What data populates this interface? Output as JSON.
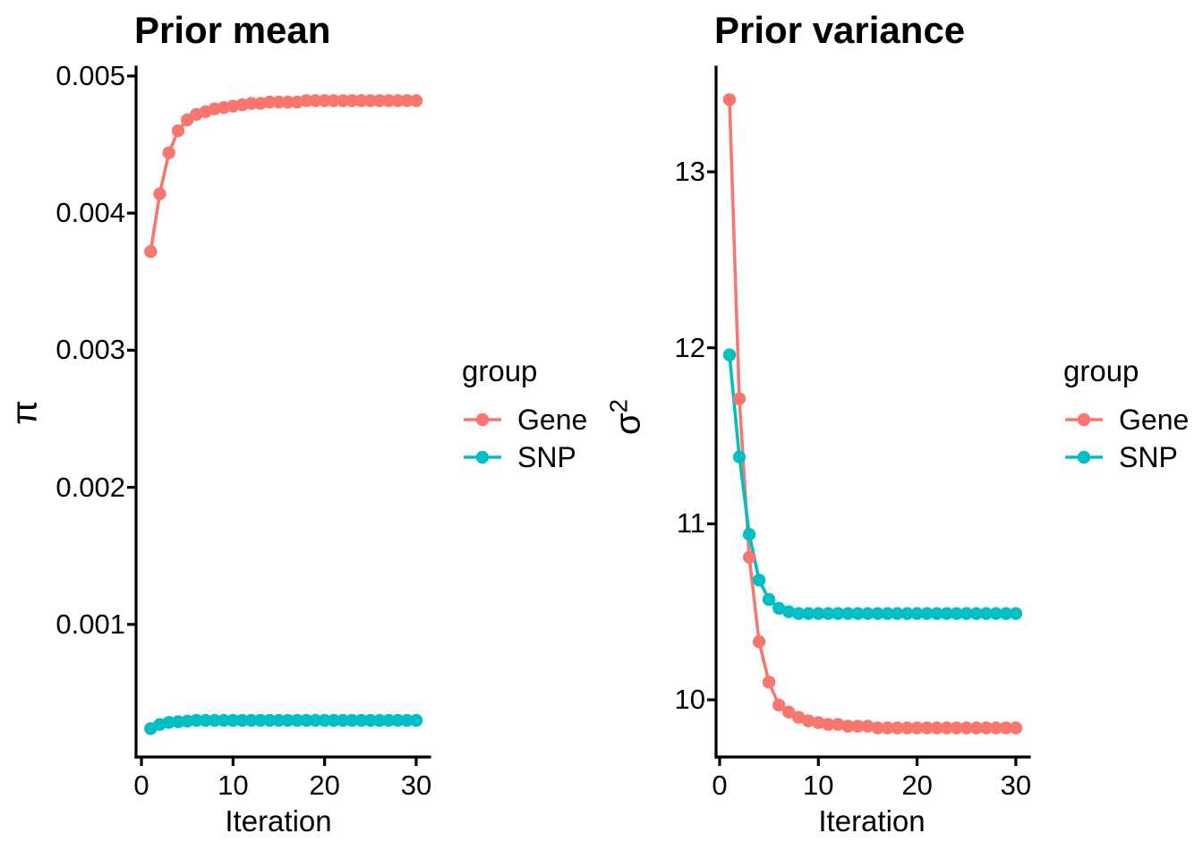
{
  "chart_data": [
    {
      "type": "line",
      "title": "Prior mean",
      "xlabel": "Iteration",
      "ylabel": "π",
      "legend_title": "group",
      "legend_position": "right",
      "grid": false,
      "x": [
        1,
        2,
        3,
        4,
        5,
        6,
        7,
        8,
        9,
        10,
        11,
        12,
        13,
        14,
        15,
        16,
        17,
        18,
        19,
        20,
        21,
        22,
        23,
        24,
        25,
        26,
        27,
        28,
        29,
        30
      ],
      "xlim": [
        -0.59,
        31.47
      ],
      "ylim": [
        3.3e-05,
        0.005065
      ],
      "xticks": {
        "values": [
          0,
          10,
          20,
          30
        ],
        "labels": [
          "0",
          "10",
          "20",
          "30"
        ]
      },
      "yticks": {
        "values": [
          0.005,
          0.004,
          0.003,
          0.002,
          0.001
        ],
        "labels": [
          "0.005",
          "0.004",
          "0.003",
          "0.002",
          "0.001"
        ]
      },
      "series": [
        {
          "name": "Gene",
          "color": "#F8766D",
          "values": [
            0.00372,
            0.00414,
            0.00444,
            0.0046,
            0.00468,
            0.00472,
            0.00474,
            0.00476,
            0.00477,
            0.00478,
            0.00479,
            0.0048,
            0.0048,
            0.00481,
            0.00481,
            0.00481,
            0.00481,
            0.00482,
            0.00482,
            0.00482,
            0.00482,
            0.00482,
            0.00482,
            0.00482,
            0.00482,
            0.00482,
            0.00482,
            0.00482,
            0.00482,
            0.00482
          ]
        },
        {
          "name": "SNP",
          "color": "#00BFC4",
          "values": [
            0.00024,
            0.00027,
            0.000285,
            0.00029,
            0.000295,
            0.0003,
            0.0003,
            0.0003,
            0.0003,
            0.0003,
            0.0003,
            0.0003,
            0.0003,
            0.0003,
            0.0003,
            0.0003,
            0.0003,
            0.0003,
            0.0003,
            0.0003,
            0.0003,
            0.0003,
            0.0003,
            0.0003,
            0.0003,
            0.0003,
            0.0003,
            0.0003,
            0.0003,
            0.0003
          ]
        }
      ]
    },
    {
      "type": "line",
      "title": "Prior variance",
      "xlabel": "Iteration",
      "ylabel": "σ²",
      "ylabel_base": "σ",
      "ylabel_sup": "2",
      "legend_title": "group",
      "legend_position": "right",
      "grid": false,
      "x": [
        1,
        2,
        3,
        4,
        5,
        6,
        7,
        8,
        9,
        10,
        11,
        12,
        13,
        14,
        15,
        16,
        17,
        18,
        19,
        20,
        21,
        22,
        23,
        24,
        25,
        26,
        27,
        28,
        29,
        30
      ],
      "xlim": [
        -0.36,
        31.37
      ],
      "ylim": [
        9.675,
        13.595
      ],
      "xticks": {
        "values": [
          0,
          10,
          20,
          30
        ],
        "labels": [
          "0",
          "10",
          "20",
          "30"
        ]
      },
      "yticks": {
        "values": [
          13,
          12,
          11,
          10
        ],
        "labels": [
          "13",
          "12",
          "11",
          "10"
        ]
      },
      "series": [
        {
          "name": "Gene",
          "color": "#F8766D",
          "values": [
            13.41,
            11.71,
            10.81,
            10.33,
            10.1,
            9.97,
            9.93,
            9.9,
            9.88,
            9.87,
            9.86,
            9.86,
            9.85,
            9.85,
            9.85,
            9.84,
            9.84,
            9.84,
            9.84,
            9.84,
            9.84,
            9.84,
            9.84,
            9.84,
            9.84,
            9.84,
            9.84,
            9.84,
            9.84,
            9.84
          ]
        },
        {
          "name": "SNP",
          "color": "#00BFC4",
          "values": [
            11.96,
            11.38,
            10.94,
            10.68,
            10.57,
            10.52,
            10.5,
            10.49,
            10.49,
            10.49,
            10.49,
            10.49,
            10.49,
            10.49,
            10.49,
            10.49,
            10.49,
            10.49,
            10.49,
            10.49,
            10.49,
            10.49,
            10.49,
            10.49,
            10.49,
            10.49,
            10.49,
            10.49,
            10.49,
            10.49
          ]
        }
      ]
    }
  ]
}
